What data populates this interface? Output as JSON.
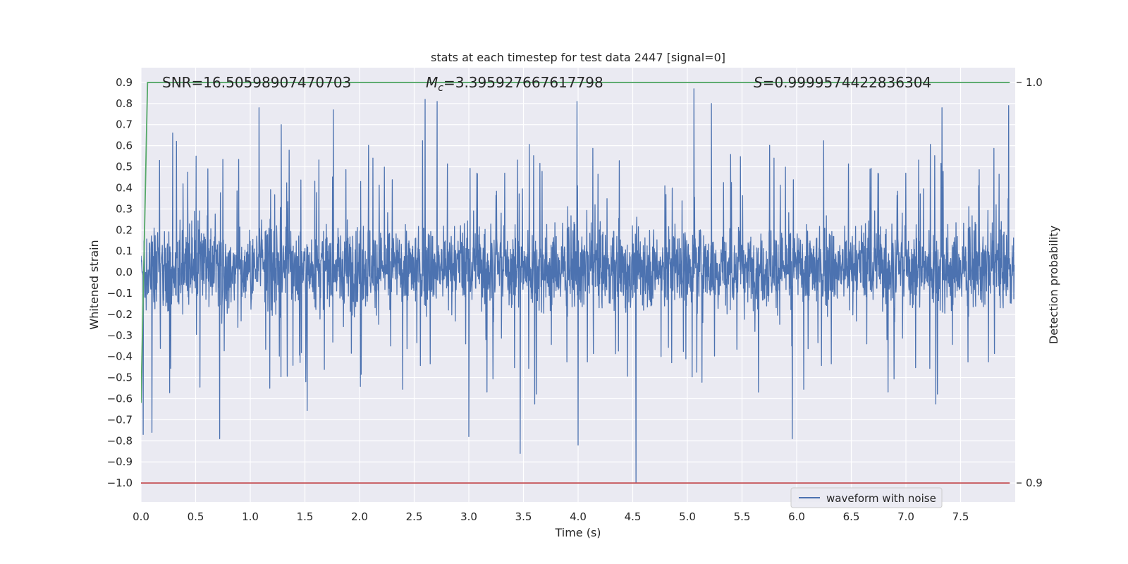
{
  "chart_data": {
    "type": "line",
    "title": "stats at each timestep for test data 2447 [signal=0]",
    "xlabel": "Time (s)",
    "ylabel": "Whitened strain",
    "y2label": "Detection probability",
    "xlim": [
      0.0,
      8.0
    ],
    "ylim": [
      -1.09,
      0.97
    ],
    "y2lim": [
      0.9,
      1.0
    ],
    "xticks": [
      0.0,
      0.5,
      1.0,
      1.5,
      2.0,
      2.5,
      3.0,
      3.5,
      4.0,
      4.5,
      5.0,
      5.5,
      6.0,
      6.5,
      7.0,
      7.5
    ],
    "xtick_labels": [
      "0.0",
      "0.5",
      "1.0",
      "1.5",
      "2.0",
      "2.5",
      "3.0",
      "3.5",
      "4.0",
      "4.5",
      "5.0",
      "5.5",
      "6.0",
      "6.5",
      "7.0",
      "7.5"
    ],
    "yticks": [
      0.9,
      0.8,
      0.7,
      0.6,
      0.5,
      0.4,
      0.3,
      0.2,
      0.1,
      0.0,
      -0.1,
      -0.2,
      -0.3,
      -0.4,
      -0.5,
      -0.6,
      -0.7,
      -0.8,
      -0.9,
      -1.0
    ],
    "ytick_labels": [
      "0.9",
      "0.8",
      "0.7",
      "0.6",
      "0.5",
      "0.4",
      "0.3",
      "0.2",
      "0.1",
      "0.0",
      "−0.1",
      "−0.2",
      "−0.3",
      "−0.4",
      "−0.5",
      "−0.6",
      "−0.7",
      "−0.8",
      "−0.9",
      "−1.0"
    ],
    "y2ticks": [
      1.0,
      0.9
    ],
    "y2tick_labels": [
      "1.0",
      "0.9"
    ],
    "grid": true,
    "annotations": {
      "snr": "SNR=16.50598907470703",
      "mc_symbol": "M",
      "mc_subscript": "c",
      "mc_value": "=3.395927667617798",
      "s_symbol": "S",
      "s_value": "=0.9999574422836304"
    },
    "series": [
      {
        "name": "waveform with noise",
        "color": "#4c72b0",
        "axis": "left",
        "kind": "noise",
        "x_range": [
          0.0,
          7.99
        ],
        "typical_envelope": [
          -0.45,
          0.5
        ],
        "peaks": [
          {
            "x": 0.02,
            "y": -0.77
          },
          {
            "x": 0.1,
            "y": -0.76
          },
          {
            "x": 0.29,
            "y": 0.66
          },
          {
            "x": 0.72,
            "y": -0.79
          },
          {
            "x": 1.08,
            "y": 0.78
          },
          {
            "x": 1.76,
            "y": 0.77
          },
          {
            "x": 2.6,
            "y": 0.82
          },
          {
            "x": 2.71,
            "y": 0.81
          },
          {
            "x": 3.0,
            "y": -0.78
          },
          {
            "x": 3.47,
            "y": -0.86
          },
          {
            "x": 3.99,
            "y": 0.81
          },
          {
            "x": 4.0,
            "y": -0.82
          },
          {
            "x": 4.53,
            "y": -1.0
          },
          {
            "x": 5.06,
            "y": 0.87
          },
          {
            "x": 5.22,
            "y": 0.8
          },
          {
            "x": 5.96,
            "y": -0.79
          },
          {
            "x": 7.33,
            "y": 0.78
          },
          {
            "x": 7.94,
            "y": 0.79
          }
        ]
      },
      {
        "name": "",
        "color": "#55a868",
        "axis": "right",
        "x": [
          0.0,
          0.06,
          7.95
        ],
        "y": [
          0.92,
          1.0,
          1.0
        ]
      },
      {
        "name": "",
        "color": "#c44e52",
        "axis": "right",
        "x": [
          0.0,
          7.95
        ],
        "y": [
          0.9,
          0.9
        ]
      }
    ],
    "legend": {
      "position": "lower-right",
      "entries": [
        {
          "label": "waveform with noise",
          "color": "#4c72b0"
        }
      ]
    },
    "colors": {
      "plot_background": "#eaeaf2",
      "grid": "#ffffff",
      "text": "#262626"
    }
  }
}
